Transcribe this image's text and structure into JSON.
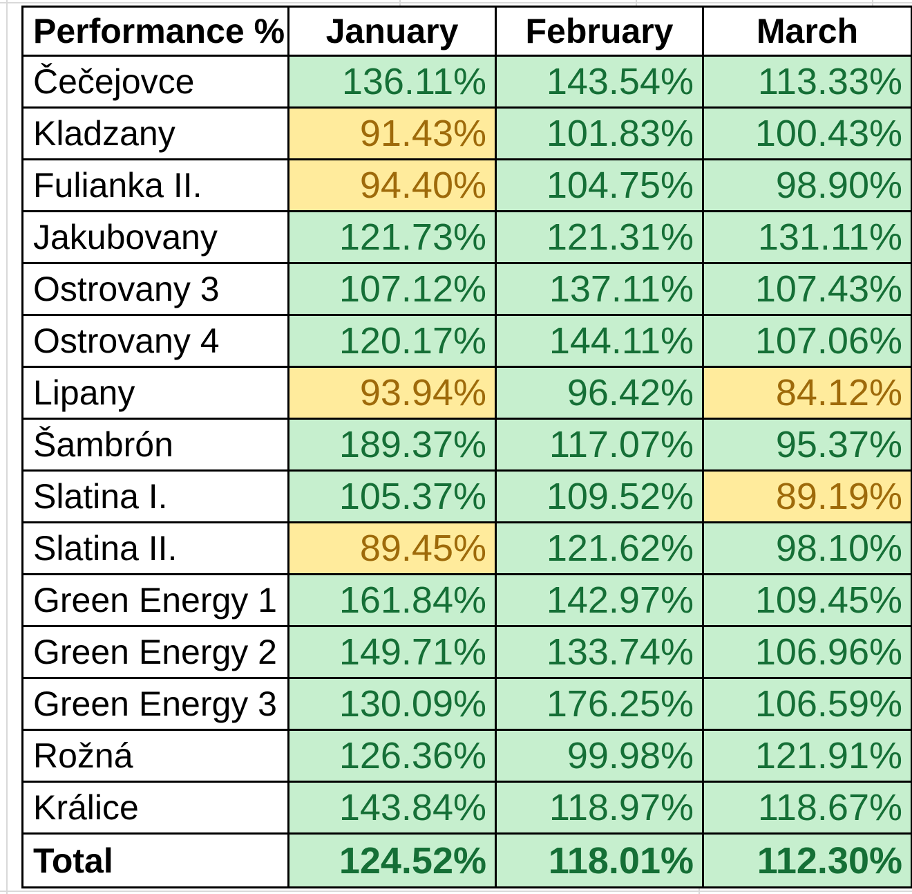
{
  "table": {
    "header": {
      "label": "Performance %",
      "months": [
        "January",
        "February",
        "March"
      ]
    },
    "rows": [
      {
        "name": "Čečejovce",
        "values": [
          "136.11%",
          "143.54%",
          "113.33%"
        ],
        "styles": [
          "good",
          "good",
          "good"
        ]
      },
      {
        "name": "Kladzany",
        "values": [
          "91.43%",
          "101.83%",
          "100.43%"
        ],
        "styles": [
          "neutral",
          "good",
          "good"
        ]
      },
      {
        "name": "Fulianka II.",
        "values": [
          "94.40%",
          "104.75%",
          "98.90%"
        ],
        "styles": [
          "neutral",
          "good",
          "good"
        ]
      },
      {
        "name": "Jakubovany",
        "values": [
          "121.73%",
          "121.31%",
          "131.11%"
        ],
        "styles": [
          "good",
          "good",
          "good"
        ]
      },
      {
        "name": "Ostrovany 3",
        "values": [
          "107.12%",
          "137.11%",
          "107.43%"
        ],
        "styles": [
          "good",
          "good",
          "good"
        ]
      },
      {
        "name": "Ostrovany 4",
        "values": [
          "120.17%",
          "144.11%",
          "107.06%"
        ],
        "styles": [
          "good",
          "good",
          "good"
        ]
      },
      {
        "name": "Lipany",
        "values": [
          "93.94%",
          "96.42%",
          "84.12%"
        ],
        "styles": [
          "neutral",
          "good",
          "neutral"
        ]
      },
      {
        "name": "Šambrón",
        "values": [
          "189.37%",
          "117.07%",
          "95.37%"
        ],
        "styles": [
          "good",
          "good",
          "good"
        ]
      },
      {
        "name": "Slatina I.",
        "values": [
          "105.37%",
          "109.52%",
          "89.19%"
        ],
        "styles": [
          "good",
          "good",
          "neutral"
        ]
      },
      {
        "name": "Slatina II.",
        "values": [
          "89.45%",
          "121.62%",
          "98.10%"
        ],
        "styles": [
          "neutral",
          "good",
          "good"
        ]
      },
      {
        "name": "Green Energy 1",
        "values": [
          "161.84%",
          "142.97%",
          "109.45%"
        ],
        "styles": [
          "good",
          "good",
          "good"
        ]
      },
      {
        "name": "Green Energy 2",
        "values": [
          "149.71%",
          "133.74%",
          "106.96%"
        ],
        "styles": [
          "good",
          "good",
          "good"
        ]
      },
      {
        "name": "Green Energy 3",
        "values": [
          "130.09%",
          "176.25%",
          "106.59%"
        ],
        "styles": [
          "good",
          "good",
          "good"
        ]
      },
      {
        "name": "Rožná",
        "values": [
          "126.36%",
          "99.98%",
          "121.91%"
        ],
        "styles": [
          "good",
          "good",
          "good"
        ]
      },
      {
        "name": "Králice",
        "values": [
          "143.84%",
          "118.97%",
          "118.67%"
        ],
        "styles": [
          "good",
          "good",
          "good"
        ]
      }
    ],
    "total": {
      "name": "Total",
      "values": [
        "124.52%",
        "118.01%",
        "112.30%"
      ],
      "styles": [
        "good",
        "good",
        "good"
      ]
    }
  },
  "colors": {
    "good_bg": "#c6efce",
    "good_text": "#156f36",
    "neutral_bg": "#ffeb9c",
    "neutral_text": "#9e6a0a",
    "border": "#000000",
    "gridline": "#d9d9d9"
  }
}
